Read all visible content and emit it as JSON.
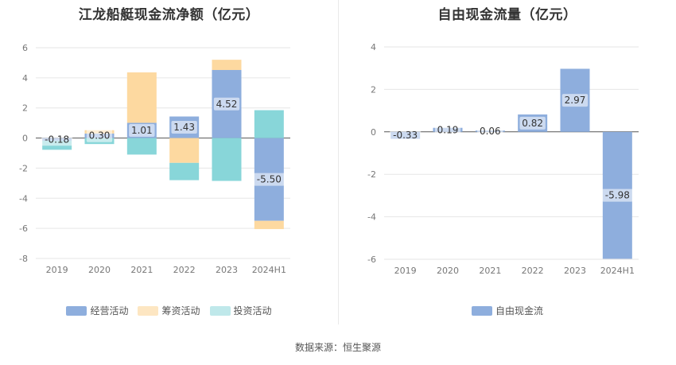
{
  "source": "数据来源：恒生聚源",
  "colors": {
    "operating": "#8eaedd",
    "financing": "#fdd9a0",
    "investing": "#88d6d9",
    "fcf": "#8eaedd"
  },
  "chart_data": [
    {
      "type": "bar",
      "stacked": true,
      "title": "江龙船艇现金流净额（亿元）",
      "categories": [
        "2019",
        "2020",
        "2021",
        "2022",
        "2023",
        "2024H1"
      ],
      "ylim": [
        -8,
        6
      ],
      "yticks": [
        "6",
        "4",
        "2",
        "0",
        "-2",
        "-4",
        "-6",
        "-8"
      ],
      "series": [
        {
          "name": "经营活动",
          "values": [
            -0.18,
            0.3,
            1.01,
            1.43,
            4.52,
            -5.5
          ],
          "labels": [
            "-0.18",
            "0.30",
            "1.01",
            "1.43",
            "4.52",
            "-5.50"
          ]
        },
        {
          "name": "筹资活动",
          "values": [
            0.0,
            0.22,
            3.35,
            -1.65,
            0.68,
            -0.55
          ]
        },
        {
          "name": "投资活动",
          "values": [
            -0.6,
            -0.4,
            -1.1,
            -1.15,
            -2.85,
            1.85
          ]
        }
      ],
      "legend": "bottom",
      "grid": true
    },
    {
      "type": "bar",
      "title": "自由现金流量（亿元）",
      "categories": [
        "2019",
        "2020",
        "2021",
        "2022",
        "2023",
        "2024H1"
      ],
      "ylim": [
        -6,
        4
      ],
      "yticks": [
        "4",
        "2",
        "0",
        "-2",
        "-4",
        "-6"
      ],
      "series": [
        {
          "name": "自由现金流",
          "values": [
            -0.33,
            0.19,
            0.06,
            0.82,
            2.97,
            -5.98
          ],
          "labels": [
            "-0.33",
            "0.19",
            "0.06",
            "0.82",
            "2.97",
            "-5.98"
          ]
        }
      ],
      "legend": "bottom",
      "grid": true
    }
  ]
}
